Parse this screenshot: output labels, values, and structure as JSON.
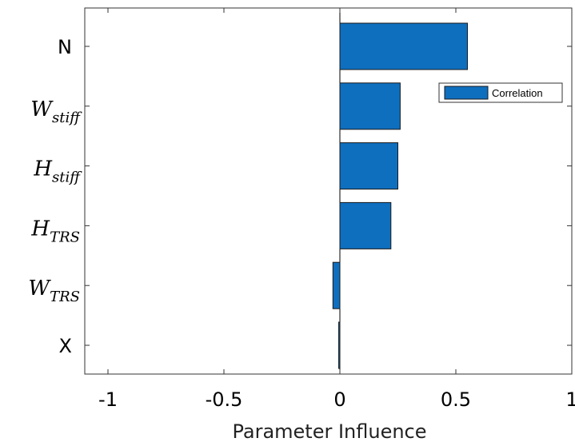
{
  "chart_data": {
    "type": "bar",
    "orientation": "horizontal",
    "categories": [
      {
        "base": "N",
        "sub": ""
      },
      {
        "base": "W",
        "sub": "stiff"
      },
      {
        "base": "H",
        "sub": "stiff"
      },
      {
        "base": "H",
        "sub": "TRS"
      },
      {
        "base": "W",
        "sub": "TRS"
      },
      {
        "base": "X",
        "sub": ""
      }
    ],
    "series": [
      {
        "name": "Correlation",
        "values": [
          0.55,
          0.26,
          0.25,
          0.22,
          -0.03,
          -0.005
        ],
        "color": "#0e6fbf"
      }
    ],
    "xlabel": "Parameter Influence",
    "xlim": [
      -1.1,
      1.0
    ],
    "xticks": [
      -1,
      -0.5,
      0,
      0.5,
      1
    ],
    "xtick_labels": [
      "-1",
      "-0.5",
      "0",
      "0.5",
      "1"
    ],
    "grid": false,
    "legend_position": "top-right"
  }
}
